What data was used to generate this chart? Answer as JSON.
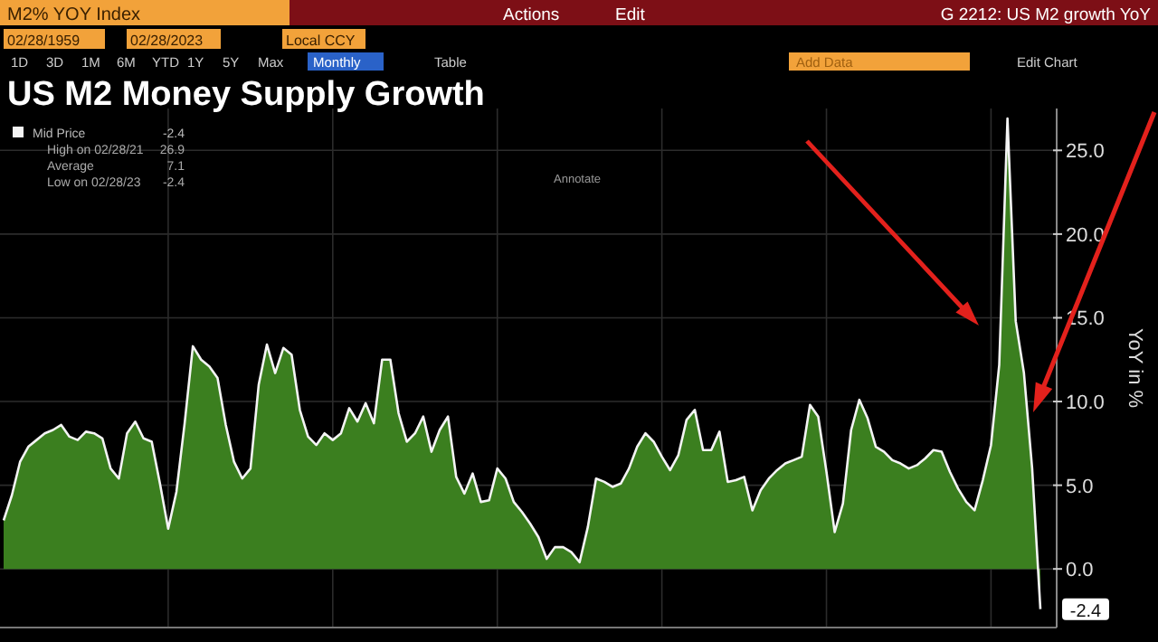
{
  "chart_data": {
    "type": "area",
    "title": "US M2 Money Supply Growth",
    "ylabel": "YoY in %",
    "categories": [
      null,
      null,
      null,
      null,
      null,
      null,
      null,
      null,
      null,
      null,
      null,
      null,
      null,
      null,
      null,
      null,
      null,
      null,
      null,
      null,
      null,
      null,
      null,
      null,
      null,
      null,
      null,
      null,
      null,
      null,
      null,
      null,
      null,
      null,
      null,
      null,
      null,
      null,
      null,
      null,
      null,
      null,
      null,
      null,
      null,
      null,
      null,
      null,
      null,
      null,
      null,
      null,
      null,
      null,
      null,
      null,
      null,
      null,
      null,
      null,
      null,
      null,
      null,
      null,
      null,
      null,
      null,
      null,
      null,
      null,
      null,
      null,
      null,
      null,
      null,
      null,
      null,
      null,
      null,
      null,
      null,
      null,
      null,
      null,
      null,
      null,
      null,
      null,
      null,
      null,
      null,
      null,
      null,
      null,
      null,
      null,
      null,
      null,
      null,
      null,
      null,
      null,
      null,
      null,
      null,
      null,
      null,
      null,
      null,
      null,
      null,
      null,
      null,
      null,
      null,
      null,
      null,
      null,
      null,
      null,
      null,
      null,
      null,
      null,
      null,
      null,
      null
    ],
    "series": [
      {
        "name": "Mid Price",
        "color": "#f4f4f4",
        "values": [
          2.9,
          4.4,
          6.4,
          7.3,
          7.7,
          8.1,
          8.3,
          8.6,
          7.9,
          7.7,
          8.2,
          8.1,
          7.8,
          6.0,
          5.4,
          8.1,
          8.8,
          7.8,
          7.6,
          5.1,
          2.4,
          4.6,
          8.7,
          13.3,
          12.5,
          12.1,
          11.4,
          8.6,
          6.4,
          5.4,
          6.0,
          11.0,
          13.4,
          11.7,
          13.2,
          12.8,
          9.5,
          7.9,
          7.4,
          8.1,
          7.7,
          8.1,
          9.6,
          8.8,
          9.9,
          8.7,
          12.5,
          12.5,
          9.3,
          7.6,
          8.1,
          9.1,
          7.0,
          8.3,
          9.1,
          5.5,
          4.5,
          5.7,
          4.0,
          4.1,
          6.0,
          5.4,
          4.0,
          3.4,
          2.7,
          1.9,
          0.6,
          1.3,
          1.3,
          1.0,
          0.4,
          2.5,
          5.4,
          5.2,
          4.9,
          5.1,
          6.0,
          7.3,
          8.1,
          7.6,
          6.7,
          5.9,
          6.8,
          8.9,
          9.5,
          7.1,
          7.1,
          8.2,
          5.2,
          5.3,
          5.5,
          3.5,
          4.7,
          5.4,
          5.9,
          6.3,
          6.5,
          6.7,
          9.8,
          9.1,
          5.8,
          2.2,
          3.9,
          8.3,
          10.1,
          9.0,
          7.3,
          7.0,
          6.5,
          6.3,
          6.0,
          6.2,
          6.6,
          7.1,
          7.0,
          5.8,
          4.8,
          4.0,
          3.5,
          5.3,
          7.4,
          12.2,
          26.9,
          14.8,
          11.7,
          6.0,
          -2.4
        ]
      }
    ],
    "ylim": [
      -3.5,
      27.5
    ],
    "yticks": [
      {
        "value": 0,
        "label": "0.0"
      },
      {
        "value": 5,
        "label": "5.0"
      },
      {
        "value": 10,
        "label": "10.0"
      },
      {
        "value": 15,
        "label": "15.0"
      },
      {
        "value": 20,
        "label": "20.0"
      },
      {
        "value": 25,
        "label": "25.0"
      }
    ],
    "tick_labels": "y",
    "grid": true,
    "legend": "top left",
    "annotations": [
      "M2% YOY Index",
      "Actions",
      "Edit",
      "G 2212: US M2 growth YoY",
      "02/28/1959",
      "02/28/2023",
      "Local CCY",
      "1D",
      "3D",
      "1M",
      "6M",
      "YTD",
      "1Y",
      "5Y",
      "Max",
      "Monthly",
      "Table",
      "Add Data",
      "Edit Chart",
      "-2.4",
      "High on 02/28/21",
      "26.9",
      "Average",
      "7.1",
      "Low on 02/28/23",
      "-2.4",
      "Annotate",
      "-2.4"
    ]
  }
}
